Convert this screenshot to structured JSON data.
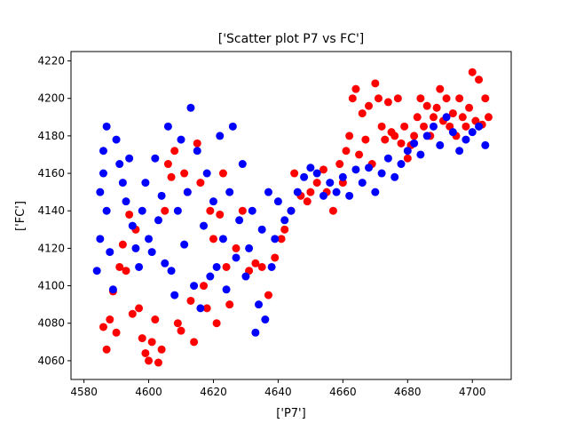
{
  "chart_data": {
    "type": "scatter",
    "title": "['Scatter plot P7 vs FC']",
    "xlabel": "['P7']",
    "ylabel": "['FC']",
    "xlim": [
      4576,
      4712
    ],
    "ylim": [
      4050,
      4225
    ],
    "xticks": [
      4580,
      4600,
      4620,
      4640,
      4660,
      4680,
      4700
    ],
    "yticks": [
      4060,
      4080,
      4100,
      4120,
      4140,
      4160,
      4180,
      4200,
      4220
    ],
    "grid": false,
    "series": [
      {
        "color": "#ff0000",
        "points": [
          [
            4586,
            4078
          ],
          [
            4587,
            4066
          ],
          [
            4588,
            4082
          ],
          [
            4589,
            4097
          ],
          [
            4590,
            4075
          ],
          [
            4591,
            4110
          ],
          [
            4592,
            4122
          ],
          [
            4593,
            4108
          ],
          [
            4594,
            4138
          ],
          [
            4595,
            4085
          ],
          [
            4596,
            4130
          ],
          [
            4597,
            4088
          ],
          [
            4598,
            4072
          ],
          [
            4599,
            4064
          ],
          [
            4600,
            4060
          ],
          [
            4601,
            4070
          ],
          [
            4602,
            4082
          ],
          [
            4603,
            4059
          ],
          [
            4604,
            4066
          ],
          [
            4605,
            4140
          ],
          [
            4606,
            4165
          ],
          [
            4607,
            4158
          ],
          [
            4608,
            4172
          ],
          [
            4609,
            4080
          ],
          [
            4610,
            4076
          ],
          [
            4611,
            4160
          ],
          [
            4612,
            4150
          ],
          [
            4613,
            4092
          ],
          [
            4614,
            4070
          ],
          [
            4615,
            4176
          ],
          [
            4616,
            4155
          ],
          [
            4617,
            4100
          ],
          [
            4618,
            4088
          ],
          [
            4619,
            4140
          ],
          [
            4620,
            4125
          ],
          [
            4621,
            4080
          ],
          [
            4622,
            4138
          ],
          [
            4623,
            4160
          ],
          [
            4624,
            4110
          ],
          [
            4625,
            4090
          ],
          [
            4627,
            4120
          ],
          [
            4629,
            4140
          ],
          [
            4631,
            4108
          ],
          [
            4633,
            4112
          ],
          [
            4635,
            4110
          ],
          [
            4637,
            4095
          ],
          [
            4639,
            4115
          ],
          [
            4641,
            4125
          ],
          [
            4642,
            4130
          ],
          [
            4644,
            4140
          ],
          [
            4645,
            4160
          ],
          [
            4647,
            4148
          ],
          [
            4649,
            4145
          ],
          [
            4650,
            4150
          ],
          [
            4652,
            4155
          ],
          [
            4654,
            4162
          ],
          [
            4655,
            4150
          ],
          [
            4657,
            4140
          ],
          [
            4659,
            4165
          ],
          [
            4660,
            4155
          ],
          [
            4661,
            4172
          ],
          [
            4662,
            4180
          ],
          [
            4663,
            4200
          ],
          [
            4664,
            4205
          ],
          [
            4665,
            4170
          ],
          [
            4666,
            4192
          ],
          [
            4667,
            4178
          ],
          [
            4668,
            4196
          ],
          [
            4669,
            4165
          ],
          [
            4670,
            4208
          ],
          [
            4671,
            4200
          ],
          [
            4672,
            4185
          ],
          [
            4673,
            4178
          ],
          [
            4674,
            4198
          ],
          [
            4675,
            4182
          ],
          [
            4676,
            4180
          ],
          [
            4677,
            4200
          ],
          [
            4678,
            4176
          ],
          [
            4679,
            4185
          ],
          [
            4680,
            4168
          ],
          [
            4681,
            4175
          ],
          [
            4682,
            4180
          ],
          [
            4683,
            4190
          ],
          [
            4684,
            4200
          ],
          [
            4685,
            4185
          ],
          [
            4686,
            4196
          ],
          [
            4687,
            4180
          ],
          [
            4688,
            4190
          ],
          [
            4689,
            4195
          ],
          [
            4690,
            4205
          ],
          [
            4691,
            4188
          ],
          [
            4692,
            4200
          ],
          [
            4693,
            4185
          ],
          [
            4694,
            4192
          ],
          [
            4695,
            4180
          ],
          [
            4696,
            4200
          ],
          [
            4697,
            4190
          ],
          [
            4698,
            4185
          ],
          [
            4699,
            4195
          ],
          [
            4700,
            4214
          ],
          [
            4701,
            4188
          ],
          [
            4702,
            4210
          ],
          [
            4703,
            4186
          ],
          [
            4704,
            4200
          ],
          [
            4705,
            4190
          ]
        ]
      },
      {
        "color": "#0000ff",
        "points": [
          [
            4584,
            4108
          ],
          [
            4585,
            4125
          ],
          [
            4585,
            4150
          ],
          [
            4586,
            4160
          ],
          [
            4586,
            4172
          ],
          [
            4587,
            4140
          ],
          [
            4587,
            4185
          ],
          [
            4588,
            4118
          ],
          [
            4589,
            4098
          ],
          [
            4590,
            4178
          ],
          [
            4591,
            4165
          ],
          [
            4592,
            4155
          ],
          [
            4593,
            4145
          ],
          [
            4594,
            4168
          ],
          [
            4595,
            4132
          ],
          [
            4596,
            4120
          ],
          [
            4597,
            4110
          ],
          [
            4598,
            4140
          ],
          [
            4599,
            4155
          ],
          [
            4600,
            4125
          ],
          [
            4601,
            4118
          ],
          [
            4602,
            4168
          ],
          [
            4603,
            4135
          ],
          [
            4604,
            4148
          ],
          [
            4605,
            4112
          ],
          [
            4606,
            4185
          ],
          [
            4607,
            4108
          ],
          [
            4608,
            4095
          ],
          [
            4609,
            4140
          ],
          [
            4610,
            4178
          ],
          [
            4611,
            4122
          ],
          [
            4612,
            4150
          ],
          [
            4613,
            4195
          ],
          [
            4614,
            4100
          ],
          [
            4615,
            4172
          ],
          [
            4616,
            4088
          ],
          [
            4617,
            4132
          ],
          [
            4618,
            4160
          ],
          [
            4619,
            4105
          ],
          [
            4620,
            4145
          ],
          [
            4621,
            4110
          ],
          [
            4622,
            4180
          ],
          [
            4623,
            4125
          ],
          [
            4624,
            4098
          ],
          [
            4625,
            4150
          ],
          [
            4626,
            4185
          ],
          [
            4627,
            4115
          ],
          [
            4628,
            4135
          ],
          [
            4629,
            4165
          ],
          [
            4630,
            4105
          ],
          [
            4631,
            4120
          ],
          [
            4632,
            4140
          ],
          [
            4633,
            4075
          ],
          [
            4634,
            4090
          ],
          [
            4635,
            4130
          ],
          [
            4636,
            4082
          ],
          [
            4637,
            4150
          ],
          [
            4638,
            4110
          ],
          [
            4639,
            4125
          ],
          [
            4640,
            4145
          ],
          [
            4642,
            4135
          ],
          [
            4644,
            4140
          ],
          [
            4646,
            4150
          ],
          [
            4648,
            4158
          ],
          [
            4650,
            4163
          ],
          [
            4652,
            4160
          ],
          [
            4654,
            4148
          ],
          [
            4656,
            4155
          ],
          [
            4658,
            4150
          ],
          [
            4660,
            4158
          ],
          [
            4662,
            4148
          ],
          [
            4664,
            4162
          ],
          [
            4666,
            4155
          ],
          [
            4668,
            4163
          ],
          [
            4670,
            4150
          ],
          [
            4672,
            4160
          ],
          [
            4674,
            4168
          ],
          [
            4676,
            4158
          ],
          [
            4678,
            4165
          ],
          [
            4680,
            4172
          ],
          [
            4682,
            4176
          ],
          [
            4684,
            4170
          ],
          [
            4686,
            4180
          ],
          [
            4688,
            4185
          ],
          [
            4690,
            4175
          ],
          [
            4692,
            4190
          ],
          [
            4694,
            4182
          ],
          [
            4696,
            4172
          ],
          [
            4698,
            4178
          ],
          [
            4700,
            4182
          ],
          [
            4702,
            4185
          ],
          [
            4704,
            4175
          ]
        ]
      }
    ]
  }
}
